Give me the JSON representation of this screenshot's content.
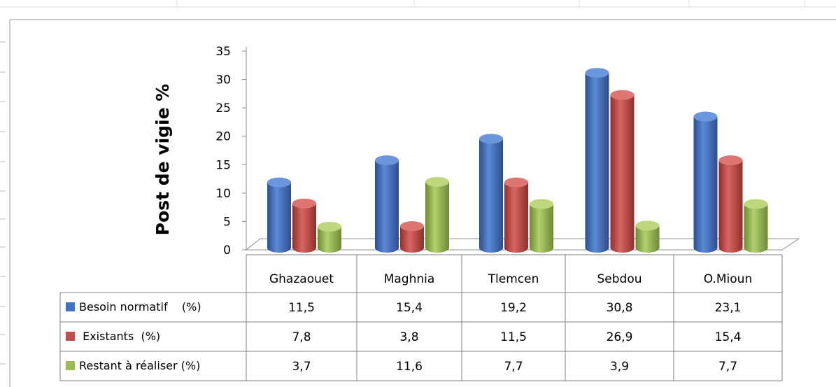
{
  "chart_data": {
    "type": "bar",
    "style": "3d-cylinder",
    "ylabel": "Post de vigie %",
    "ylim": [
      0,
      35
    ],
    "yticks": [
      "0",
      "5",
      "10",
      "15",
      "20",
      "25",
      "30",
      "35"
    ],
    "categories": [
      "Ghazaouet",
      "Maghnia",
      "Tlemcen",
      "Sebdou",
      "O.Mioun"
    ],
    "series": [
      {
        "name": "Besoin normatif    (%)",
        "values": [
          11.5,
          15.4,
          19.2,
          30.8,
          23.1
        ],
        "value_labels": [
          "11,5",
          "15,4",
          "19,2",
          "30,8",
          "23,1"
        ],
        "color": "#4472C4"
      },
      {
        "name": " Existants  (%)",
        "values": [
          7.8,
          3.8,
          11.5,
          26.9,
          15.4
        ],
        "value_labels": [
          "7,8",
          "3,8",
          "11,5",
          "26,9",
          "15,4"
        ],
        "color": "#C0504D"
      },
      {
        "name": "Restant à réaliser (%)",
        "values": [
          3.7,
          11.6,
          7.7,
          3.9,
          7.7
        ],
        "value_labels": [
          "3,7",
          "11,6",
          "7,7",
          "3,9",
          "7,7"
        ],
        "color": "#9BBB59"
      }
    ],
    "grid": false,
    "legend": "data-table-left"
  }
}
